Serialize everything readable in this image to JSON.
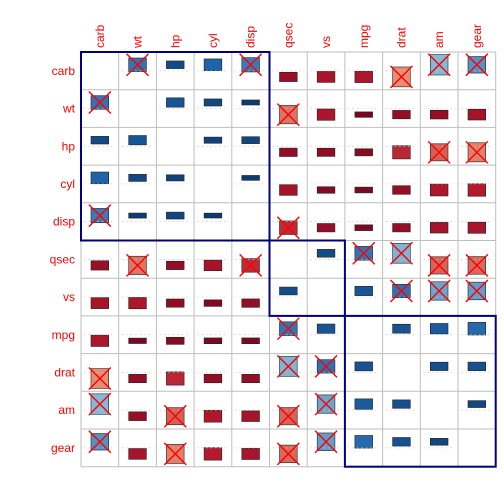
{
  "chart_data": {
    "type": "heatmap",
    "method": "bar",
    "order": "hclust",
    "variables": [
      "carb",
      "wt",
      "hp",
      "cyl",
      "disp",
      "qsec",
      "vs",
      "mpg",
      "drat",
      "am",
      "gear"
    ],
    "clusters": [
      [
        "carb",
        "wt",
        "hp",
        "cyl",
        "disp"
      ],
      [
        "qsec",
        "vs"
      ],
      [
        "mpg",
        "drat",
        "am",
        "gear"
      ]
    ],
    "significance_level": 0.05,
    "matrix": [
      [
        1.0,
        0.43,
        0.75,
        0.53,
        0.39,
        -0.66,
        -0.57,
        -0.55,
        -0.09,
        0.06,
        0.27
      ],
      [
        0.43,
        1.0,
        0.66,
        0.78,
        0.89,
        -0.17,
        -0.55,
        -0.87,
        -0.71,
        -0.69,
        -0.58
      ],
      [
        0.75,
        0.66,
        1.0,
        0.83,
        0.79,
        -0.71,
        -0.72,
        -0.78,
        -0.45,
        -0.24,
        -0.13
      ],
      [
        0.53,
        0.78,
        0.83,
        1.0,
        0.9,
        -0.59,
        -0.81,
        -0.85,
        -0.7,
        -0.52,
        -0.49
      ],
      [
        0.39,
        0.89,
        0.79,
        0.9,
        1.0,
        -0.43,
        -0.71,
        -0.85,
        -0.71,
        -0.59,
        -0.56
      ],
      [
        -0.66,
        -0.17,
        -0.71,
        -0.59,
        -0.43,
        1.0,
        0.74,
        0.42,
        0.09,
        -0.23,
        -0.21
      ],
      [
        -0.57,
        -0.55,
        -0.72,
        -0.81,
        -0.71,
        0.74,
        1.0,
        0.66,
        0.44,
        0.17,
        0.21
      ],
      [
        -0.55,
        -0.87,
        -0.78,
        -0.85,
        -0.85,
        0.42,
        0.66,
        1.0,
        0.68,
        0.6,
        0.48
      ],
      [
        -0.09,
        -0.71,
        -0.45,
        -0.7,
        -0.71,
        0.09,
        0.44,
        0.68,
        1.0,
        0.71,
        0.7
      ],
      [
        0.06,
        -0.69,
        -0.24,
        -0.52,
        -0.59,
        -0.23,
        0.17,
        0.6,
        0.71,
        1.0,
        0.79
      ],
      [
        0.27,
        -0.58,
        -0.13,
        -0.49,
        -0.56,
        -0.21,
        0.21,
        0.48,
        0.7,
        0.79,
        1.0
      ]
    ],
    "insignificant_pairs": [
      [
        "carb",
        "wt"
      ],
      [
        "carb",
        "disp"
      ],
      [
        "carb",
        "drat"
      ],
      [
        "carb",
        "am"
      ],
      [
        "carb",
        "gear"
      ],
      [
        "wt",
        "qsec"
      ],
      [
        "qsec",
        "disp"
      ],
      [
        "qsec",
        "mpg"
      ],
      [
        "qsec",
        "drat"
      ],
      [
        "qsec",
        "am"
      ],
      [
        "qsec",
        "gear"
      ],
      [
        "vs",
        "drat"
      ],
      [
        "vs",
        "am"
      ],
      [
        "vs",
        "gear"
      ],
      [
        "hp",
        "am"
      ],
      [
        "hp",
        "gear"
      ]
    ],
    "colors": {
      "positive_strong": "#053061",
      "positive_mid": "#2166ac",
      "positive_light": "#92c5de",
      "negative_strong": "#67001f",
      "negative_mid": "#b2182b",
      "negative_light": "#f4a582",
      "label_text": "#ff0000",
      "cross": "#ff0000",
      "cluster_rect": "#000080",
      "grid": "#bebebe"
    },
    "grid": true,
    "diagonal": "blank",
    "legend": "none"
  }
}
